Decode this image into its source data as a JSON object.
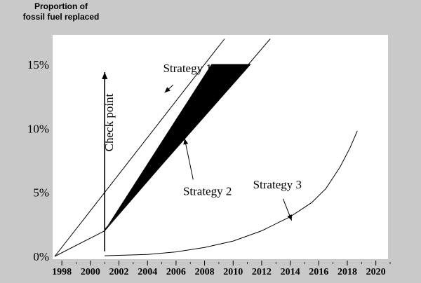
{
  "chart_data": {
    "type": "line",
    "ylabel_lines": [
      "Proportion of",
      "fossil fuel replaced"
    ],
    "xlabel": "",
    "x_ticks": [
      "1998",
      "2000",
      "2002",
      "2004",
      "2006",
      "2008",
      "2010",
      "2012",
      "2014",
      "2016",
      "2018",
      "2020"
    ],
    "y_ticks": [
      "0%",
      "5%",
      "10%",
      "15%"
    ],
    "xlim": [
      1997.5,
      2021
    ],
    "ylim": [
      0,
      15
    ],
    "grid": false,
    "checkpoint": {
      "x": 2001,
      "label": "Check point"
    },
    "series": [
      {
        "key": "upper-line",
        "style": "line",
        "points": [
          [
            1997.5,
            0
          ],
          [
            2001,
            5
          ],
          [
            2008.9,
            16.3
          ],
          [
            2009.4,
            17
          ]
        ]
      },
      {
        "key": "lower-line",
        "style": "line",
        "points": [
          [
            1997.5,
            0
          ],
          [
            2001,
            2
          ],
          [
            2011.3,
            15.3
          ],
          [
            2012.6,
            17
          ]
        ]
      },
      {
        "key": "strategy-band",
        "style": "filled",
        "points": [
          [
            2001,
            2
          ],
          [
            2008.5,
            15
          ],
          [
            2011.2,
            15
          ],
          [
            2001,
            2.1
          ]
        ]
      },
      {
        "key": "strategy-3-curve",
        "style": "line",
        "points": [
          [
            2001,
            0.05
          ],
          [
            2004,
            0.15
          ],
          [
            2006,
            0.35
          ],
          [
            2008,
            0.7
          ],
          [
            2010,
            1.2
          ],
          [
            2012,
            2.0
          ],
          [
            2014,
            3.1
          ],
          [
            2015.5,
            4.2
          ],
          [
            2016.5,
            5.3
          ],
          [
            2017.5,
            7.0
          ],
          [
            2018.2,
            8.5
          ],
          [
            2018.7,
            9.8
          ]
        ]
      }
    ],
    "annotations": [
      {
        "key": "strategy-1",
        "text": "Strategy 1",
        "text_at": [
          2006.8,
          14.4
        ],
        "arrow_from": [
          2005.8,
          13.4
        ],
        "arrow_to": [
          2005.2,
          12.8
        ]
      },
      {
        "key": "strategy-2",
        "text": "Strategy 2",
        "text_at": [
          2008.2,
          4.8
        ],
        "arrow_from": [
          2007.2,
          6.0
        ],
        "arrow_to": [
          2006.6,
          9.2
        ]
      },
      {
        "key": "strategy-3",
        "text": "Strategy 3",
        "text_at": [
          2013.1,
          5.3
        ],
        "arrow_from": [
          2013.5,
          4.5
        ],
        "arrow_to": [
          2014.1,
          2.8
        ]
      }
    ]
  }
}
